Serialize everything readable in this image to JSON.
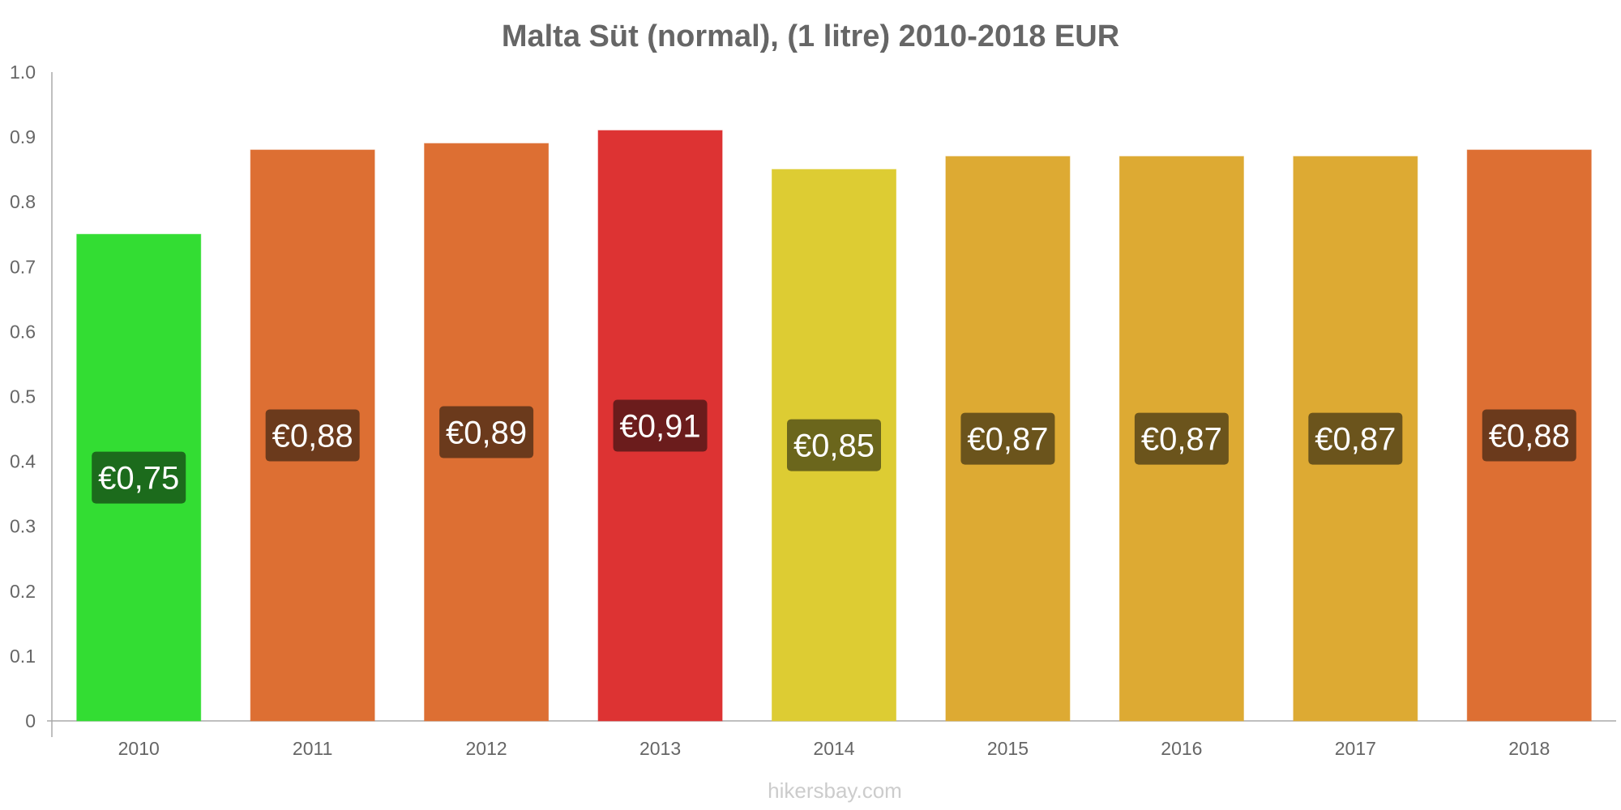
{
  "chart_data": {
    "type": "bar",
    "title": "Malta Süt (normal), (1 litre) 2010-2018 EUR",
    "categories": [
      "2010",
      "2011",
      "2012",
      "2013",
      "2014",
      "2015",
      "2016",
      "2017",
      "2018"
    ],
    "values": [
      0.75,
      0.88,
      0.89,
      0.91,
      0.85,
      0.87,
      0.87,
      0.87,
      0.88
    ],
    "value_labels": [
      "€0,75",
      "€0,88",
      "€0,89",
      "€0,91",
      "€0,85",
      "€0,87",
      "€0,87",
      "€0,87",
      "€0,88"
    ],
    "bar_colors": [
      "#33dd33",
      "#dd6f33",
      "#dd6f33",
      "#dd3333",
      "#ddcc33",
      "#ddaa33",
      "#ddaa33",
      "#ddaa33",
      "#dd6f33"
    ],
    "label_bg_colors": [
      "#1c6b1c",
      "#6b3a1c",
      "#6b3a1c",
      "#6b1c1c",
      "#6b661c",
      "#6b541c",
      "#6b541c",
      "#6b541c",
      "#6b3a1c"
    ],
    "y_ticks": [
      "0",
      "0.1",
      "0.2",
      "0.3",
      "0.4",
      "0.5",
      "0.6",
      "0.7",
      "0.8",
      "0.9",
      "1.0"
    ],
    "ylim": [
      0,
      1.0
    ],
    "xlabel": "",
    "ylabel": "",
    "grid": false,
    "legend": "none"
  },
  "watermark": "hikersbay.com",
  "colors": {
    "text": "#666666",
    "axis": "#aaaaaa",
    "watermark": "#cccccc"
  }
}
